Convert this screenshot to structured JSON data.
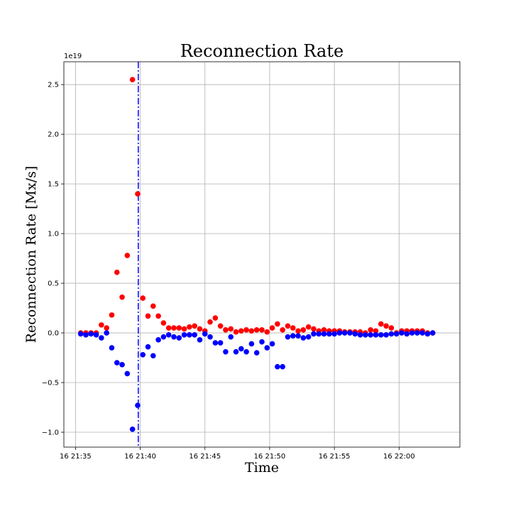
{
  "chart_data": {
    "type": "scatter",
    "title": "Reconnection Rate",
    "xlabel": "Time",
    "ylabel": "Reconnection Rate [Mx/s]",
    "y_offset_label": "1e19",
    "y_scale": 1e+19,
    "x_unit": "minutes after 16 21:35",
    "xlim": [
      -0.9,
      29.7
    ],
    "ylim": [
      -1.15,
      2.73
    ],
    "grid": true,
    "x_ticks": [
      {
        "value": 0,
        "label": "16 21:35"
      },
      {
        "value": 5,
        "label": "16 21:40"
      },
      {
        "value": 10,
        "label": "16 21:45"
      },
      {
        "value": 15,
        "label": "16 21:50"
      },
      {
        "value": 20,
        "label": "16 21:55"
      },
      {
        "value": 25,
        "label": "16 22:00"
      }
    ],
    "y_ticks": [
      {
        "value": -1.0,
        "label": "−1.0"
      },
      {
        "value": -0.5,
        "label": "−0.5"
      },
      {
        "value": 0.0,
        "label": "0.0"
      },
      {
        "value": 0.5,
        "label": "0.5"
      },
      {
        "value": 1.0,
        "label": "1.0"
      },
      {
        "value": 1.5,
        "label": "1.5"
      },
      {
        "value": 2.0,
        "label": "2.0"
      },
      {
        "value": 2.5,
        "label": "2.5"
      }
    ],
    "vline": {
      "x": 4.85,
      "color": "#0000ff",
      "style": "dash-dot"
    },
    "x": [
      0.4,
      0.8,
      1.2,
      1.6,
      2.0,
      2.4,
      2.8,
      3.2,
      3.6,
      4.0,
      4.4,
      4.8,
      5.2,
      5.6,
      6.0,
      6.4,
      6.8,
      7.2,
      7.6,
      8.0,
      8.4,
      8.8,
      9.2,
      9.6,
      10.0,
      10.4,
      10.8,
      11.2,
      11.6,
      12.0,
      12.4,
      12.8,
      13.2,
      13.6,
      14.0,
      14.4,
      14.8,
      15.2,
      15.6,
      16.0,
      16.4,
      16.8,
      17.2,
      17.6,
      18.0,
      18.4,
      18.8,
      19.2,
      19.6,
      20.0,
      20.4,
      20.8,
      21.2,
      21.6,
      22.0,
      22.4,
      22.8,
      23.2,
      23.6,
      24.0,
      24.4,
      24.8,
      25.2,
      25.6,
      26.0,
      26.4,
      26.8,
      27.2,
      27.6
    ],
    "series": [
      {
        "color": "#ff0000",
        "values": [
          0.0,
          0.0,
          0.0,
          0.0,
          0.08,
          0.05,
          0.18,
          0.61,
          0.36,
          0.78,
          2.55,
          1.4,
          0.35,
          0.17,
          0.27,
          0.17,
          0.1,
          0.05,
          0.05,
          0.05,
          0.04,
          0.06,
          0.07,
          0.04,
          0.02,
          0.11,
          0.15,
          0.07,
          0.03,
          0.04,
          0.01,
          0.02,
          0.03,
          0.02,
          0.03,
          0.03,
          0.01,
          0.05,
          0.09,
          0.03,
          0.07,
          0.05,
          0.02,
          0.03,
          0.06,
          0.04,
          0.02,
          0.03,
          0.02,
          0.02,
          0.02,
          0.01,
          0.01,
          0.01,
          0.01,
          0.0,
          0.03,
          0.02,
          0.09,
          0.07,
          0.05,
          0.0,
          0.02,
          0.02,
          0.02,
          0.02,
          0.02,
          0.0,
          0.0
        ]
      },
      {
        "color": "#0000ff",
        "values": [
          -0.01,
          -0.02,
          -0.01,
          -0.02,
          -0.05,
          0.0,
          -0.15,
          -0.3,
          -0.32,
          -0.41,
          -0.97,
          -0.73,
          -0.22,
          -0.14,
          -0.23,
          -0.07,
          -0.04,
          -0.02,
          -0.04,
          -0.05,
          -0.02,
          -0.02,
          -0.02,
          -0.07,
          -0.01,
          -0.04,
          -0.1,
          -0.1,
          -0.19,
          -0.04,
          -0.19,
          -0.16,
          -0.19,
          -0.11,
          -0.2,
          -0.09,
          -0.15,
          -0.11,
          -0.34,
          -0.34,
          -0.04,
          -0.03,
          -0.03,
          -0.05,
          -0.04,
          -0.01,
          -0.01,
          -0.01,
          -0.01,
          -0.01,
          0.0,
          0.0,
          0.0,
          -0.01,
          -0.02,
          -0.02,
          -0.02,
          -0.02,
          -0.02,
          -0.02,
          -0.01,
          -0.01,
          0.0,
          -0.01,
          0.0,
          0.0,
          0.0,
          -0.01,
          0.0
        ]
      }
    ]
  }
}
